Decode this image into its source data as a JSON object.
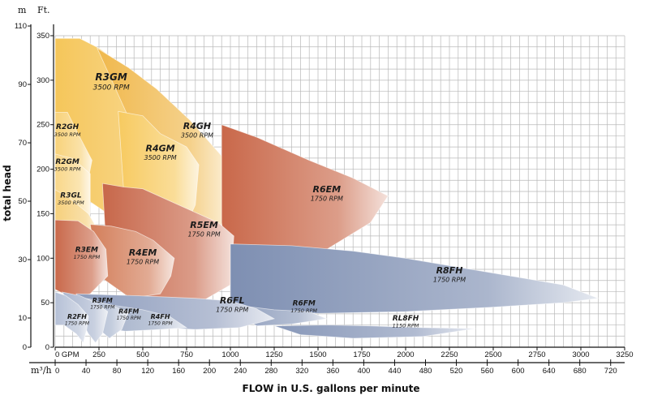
{
  "chart_data": {
    "type": "area",
    "title": "",
    "ylabel": "total head",
    "xlabel": "FLOW in U.S. gallons per minute",
    "y_ft": {
      "unit": "Ft.",
      "ticks": [
        "0",
        "50",
        "100",
        "150",
        "200",
        "250",
        "300",
        "350"
      ],
      "range": [
        0,
        350
      ]
    },
    "y_m": {
      "unit": "m",
      "ticks": [
        "0",
        "10",
        "30",
        "50",
        "70",
        "90",
        "110"
      ],
      "range": [
        0,
        110
      ]
    },
    "x_gpm": {
      "unit": "GPM",
      "ticks": [
        "0",
        "250",
        "500",
        "750",
        "1000",
        "1250",
        "1500",
        "1750",
        "2000",
        "2250",
        "2500",
        "2750",
        "3000",
        "3250"
      ],
      "range": [
        0,
        3250
      ]
    },
    "x_m3h": {
      "unit": "m³/h",
      "ticks": [
        "0",
        "40",
        "80",
        "120",
        "160",
        "200",
        "240",
        "280",
        "320",
        "360",
        "400",
        "440",
        "480",
        "520",
        "560",
        "600",
        "640",
        "680",
        "720"
      ],
      "range": [
        0,
        738
      ]
    },
    "grid": true,
    "regions": [
      {
        "id": "R3GM",
        "model": "R3GM",
        "rpm": "3500 RPM",
        "color": "#f5c65a",
        "pts": [
          [
            0,
            347
          ],
          [
            140,
            347
          ],
          [
            250,
            336
          ],
          [
            450,
            308
          ],
          [
            600,
            280
          ],
          [
            780,
            247
          ],
          [
            900,
            226
          ],
          [
            830,
            205
          ],
          [
            700,
            195
          ],
          [
            700,
            150
          ],
          [
            450,
            145
          ],
          [
            300,
            150
          ],
          [
            0,
            190
          ]
        ]
      },
      {
        "id": "R4GH",
        "model": "R4GH",
        "rpm": "3500 RPM",
        "color": "#f0b84c",
        "pts": [
          [
            240,
            336
          ],
          [
            420,
            314
          ],
          [
            580,
            290
          ],
          [
            770,
            255
          ],
          [
            950,
            215
          ],
          [
            1000,
            190
          ],
          [
            1000,
            140
          ],
          [
            900,
            100
          ],
          [
            600,
            90
          ],
          [
            520,
            150
          ],
          [
            460,
            240
          ]
        ]
      },
      {
        "id": "R4GM",
        "model": "R4GM",
        "rpm": "3500 RPM",
        "color": "#f7ca60",
        "pts": [
          [
            360,
            265
          ],
          [
            500,
            260
          ],
          [
            600,
            240
          ],
          [
            750,
            225
          ],
          [
            820,
            205
          ],
          [
            800,
            160
          ],
          [
            730,
            130
          ],
          [
            500,
            110
          ],
          [
            400,
            150
          ]
        ]
      },
      {
        "id": "R2GH",
        "model": "R2GH",
        "rpm": "3500 RPM",
        "color": "#f8d27a",
        "pts": [
          [
            0,
            264
          ],
          [
            70,
            264
          ],
          [
            130,
            240
          ],
          [
            210,
            210
          ],
          [
            160,
            160
          ],
          [
            100,
            175
          ],
          [
            0,
            210
          ]
        ]
      },
      {
        "id": "R2GM",
        "model": "R2GM",
        "rpm": "3500 RPM",
        "color": "#f9d789",
        "pts": [
          [
            0,
            217
          ],
          [
            100,
            212
          ],
          [
            200,
            195
          ],
          [
            200,
            150
          ],
          [
            110,
            130
          ],
          [
            0,
            150
          ]
        ]
      },
      {
        "id": "R3GL",
        "model": "R3GL",
        "rpm": "3500 RPM",
        "color": "#f6d07c",
        "pts": [
          [
            0,
            177
          ],
          [
            80,
            168
          ],
          [
            190,
            150
          ],
          [
            250,
            130
          ],
          [
            200,
            100
          ],
          [
            100,
            95
          ],
          [
            0,
            110
          ]
        ]
      },
      {
        "id": "R6EM",
        "model": "R6EM",
        "rpm": "1750 RPM",
        "color": "#c9684a",
        "pts": [
          [
            950,
            250
          ],
          [
            1150,
            236
          ],
          [
            1450,
            210
          ],
          [
            1700,
            190
          ],
          [
            1900,
            170
          ],
          [
            1800,
            140
          ],
          [
            1550,
            110
          ],
          [
            1200,
            75
          ],
          [
            1000,
            70
          ],
          [
            950,
            140
          ]
        ]
      },
      {
        "id": "R5EM",
        "model": "R5EM",
        "rpm": "1750 RPM",
        "color": "#c7674a",
        "pts": [
          [
            270,
            184
          ],
          [
            390,
            180
          ],
          [
            500,
            178
          ],
          [
            680,
            162
          ],
          [
            930,
            140
          ],
          [
            1020,
            125
          ],
          [
            1000,
            70
          ],
          [
            780,
            45
          ],
          [
            500,
            40
          ],
          [
            300,
            80
          ]
        ]
      },
      {
        "id": "R4EM",
        "model": "R4EM",
        "rpm": "1750 RPM",
        "color": "#d37e5a",
        "pts": [
          [
            200,
            138
          ],
          [
            320,
            136
          ],
          [
            460,
            130
          ],
          [
            560,
            120
          ],
          [
            680,
            100
          ],
          [
            660,
            80
          ],
          [
            600,
            60
          ],
          [
            430,
            55
          ],
          [
            250,
            80
          ]
        ]
      },
      {
        "id": "R3EM",
        "model": "R3EM",
        "rpm": "1750 RPM",
        "color": "#c9694b",
        "pts": [
          [
            0,
            143
          ],
          [
            130,
            142
          ],
          [
            220,
            130
          ],
          [
            290,
            110
          ],
          [
            300,
            80
          ],
          [
            200,
            60
          ],
          [
            100,
            55
          ],
          [
            0,
            65
          ]
        ]
      },
      {
        "id": "R8FH",
        "model": "R8FH",
        "rpm": "1750 RPM",
        "color": "#7e8fb2",
        "pts": [
          [
            1000,
            116
          ],
          [
            1350,
            114
          ],
          [
            1700,
            108
          ],
          [
            2000,
            100
          ],
          [
            2300,
            90
          ],
          [
            2600,
            80
          ],
          [
            2900,
            70
          ],
          [
            3100,
            55
          ],
          [
            2900,
            50
          ],
          [
            2500,
            45
          ],
          [
            2000,
            40
          ],
          [
            1500,
            38
          ],
          [
            1000,
            40
          ]
        ]
      },
      {
        "id": "RL8FH",
        "model": "RL8FH",
        "rpm": "1150 RPM",
        "color": "#8797b8",
        "pts": [
          [
            1250,
            24
          ],
          [
            1550,
            25
          ],
          [
            1800,
            24
          ],
          [
            2100,
            22
          ],
          [
            2400,
            21
          ],
          [
            2100,
            12
          ],
          [
            1700,
            10
          ],
          [
            1400,
            14
          ]
        ]
      },
      {
        "id": "R6FM",
        "model": "R6FM",
        "rpm": "1750 RPM",
        "color": "#8d9cbc",
        "pts": [
          [
            1000,
            48
          ],
          [
            1250,
            42
          ],
          [
            1450,
            40
          ],
          [
            1550,
            32
          ],
          [
            1350,
            26
          ],
          [
            1150,
            24
          ],
          [
            1100,
            30
          ]
        ]
      },
      {
        "id": "R6FL",
        "model": "R6FL",
        "rpm": "1750 RPM",
        "color": "#8e9dbd",
        "pts": [
          [
            120,
            60
          ],
          [
            450,
            58
          ],
          [
            800,
            55
          ],
          [
            1000,
            52
          ],
          [
            1150,
            43
          ],
          [
            1250,
            32
          ],
          [
            1050,
            22
          ],
          [
            800,
            20
          ],
          [
            600,
            22
          ],
          [
            400,
            28
          ],
          [
            200,
            38
          ]
        ]
      },
      {
        "id": "R4FH",
        "model": "R4FH",
        "rpm": "1750 RPM",
        "color": "#97a5c2",
        "pts": [
          [
            100,
            52
          ],
          [
            300,
            48
          ],
          [
            500,
            42
          ],
          [
            650,
            35
          ],
          [
            750,
            22
          ],
          [
            600,
            20
          ],
          [
            400,
            18
          ],
          [
            250,
            22
          ]
        ]
      },
      {
        "id": "R4FM",
        "model": "R4FM",
        "rpm": "1750 RPM",
        "color": "#a3b0ca",
        "pts": [
          [
            80,
            58
          ],
          [
            200,
            54
          ],
          [
            320,
            47
          ],
          [
            420,
            40
          ],
          [
            380,
            20
          ],
          [
            310,
            10
          ],
          [
            250,
            20
          ],
          [
            180,
            35
          ]
        ]
      },
      {
        "id": "R3FM",
        "model": "R3FM",
        "rpm": "1750 RPM",
        "color": "#aab6cf",
        "pts": [
          [
            40,
            62
          ],
          [
            140,
            58
          ],
          [
            230,
            50
          ],
          [
            300,
            40
          ],
          [
            270,
            15
          ],
          [
            230,
            5
          ],
          [
            190,
            15
          ],
          [
            150,
            30
          ]
        ]
      },
      {
        "id": "R2FH",
        "model": "R2FH",
        "rpm": "1750 RPM",
        "color": "#b5c0d6",
        "pts": [
          [
            0,
            62
          ],
          [
            60,
            58
          ],
          [
            130,
            48
          ],
          [
            190,
            35
          ],
          [
            180,
            20
          ],
          [
            160,
            5
          ],
          [
            120,
            15
          ],
          [
            50,
            25
          ],
          [
            0,
            25
          ]
        ]
      }
    ],
    "labels": [
      {
        "model": "R3GM",
        "rpm": "3500 RPM",
        "x": 320,
        "y": 300,
        "size": "lg"
      },
      {
        "model": "R4GH",
        "rpm": "3500 RPM",
        "x": 810,
        "y": 245,
        "size": "md"
      },
      {
        "model": "R4GM",
        "rpm": "3500 RPM",
        "x": 600,
        "y": 220,
        "size": "md"
      },
      {
        "model": "R2GH",
        "rpm": "3500 RPM",
        "x": 70,
        "y": 245,
        "size": "sm"
      },
      {
        "model": "R2GM",
        "rpm": "3500 RPM",
        "x": 70,
        "y": 206,
        "size": "sm"
      },
      {
        "model": "R3GL",
        "rpm": "3500 RPM",
        "x": 90,
        "y": 168,
        "size": "sm"
      },
      {
        "model": "R6EM",
        "rpm": "1750 RPM",
        "x": 1550,
        "y": 174,
        "size": "md"
      },
      {
        "model": "R5EM",
        "rpm": "1750 RPM",
        "x": 850,
        "y": 134,
        "size": "md"
      },
      {
        "model": "R4EM",
        "rpm": "1750 RPM",
        "x": 500,
        "y": 103,
        "size": "md"
      },
      {
        "model": "R3EM",
        "rpm": "1750 RPM",
        "x": 180,
        "y": 107,
        "size": "sm"
      },
      {
        "model": "R8FH",
        "rpm": "1750 RPM",
        "x": 2250,
        "y": 83,
        "size": "md"
      },
      {
        "model": "RL8FH",
        "rpm": "1150 RPM",
        "x": 2000,
        "y": 30,
        "size": "sm"
      },
      {
        "model": "R6FM",
        "rpm": "1750 RPM",
        "x": 1420,
        "y": 47,
        "size": "sm"
      },
      {
        "model": "R6FL",
        "rpm": "1750 RPM",
        "x": 1010,
        "y": 49,
        "size": "md"
      },
      {
        "model": "R4FH",
        "rpm": "1750 RPM",
        "x": 600,
        "y": 32,
        "size": "xs"
      },
      {
        "model": "R4FM",
        "rpm": "1750 RPM",
        "x": 420,
        "y": 38,
        "size": "xs"
      },
      {
        "model": "R3FM",
        "rpm": "1750 RPM",
        "x": 270,
        "y": 50,
        "size": "xs"
      },
      {
        "model": "R2FH",
        "rpm": "1750 RPM",
        "x": 125,
        "y": 32,
        "size": "xs"
      }
    ]
  }
}
